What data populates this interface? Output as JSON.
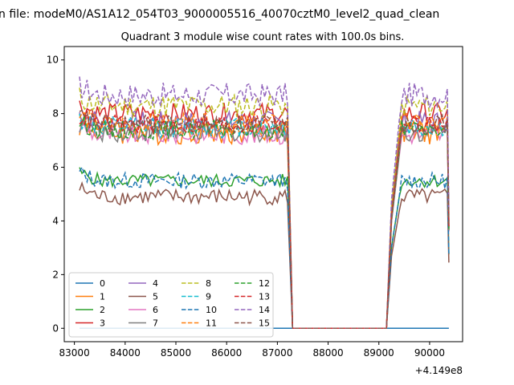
{
  "figure": {
    "suptitle": "n file: modeM0/AS1A12_054T03_9000005516_40070cztM0_level2_quad_clean",
    "title": "Quadrant 3 module wise count rates with 100.0s bins."
  },
  "chart_data": {
    "type": "line",
    "title": "Quadrant 3 module wise count rates with 100.0s bins.",
    "xlabel": "",
    "ylabel": "",
    "x_offset_label": "+4.149e8",
    "xlim": [
      82800,
      90650
    ],
    "ylim": [
      -0.5,
      10.5
    ],
    "xticks": [
      83000,
      84000,
      85000,
      86000,
      87000,
      88000,
      89000,
      90000
    ],
    "yticks": [
      0,
      2,
      4,
      6,
      8,
      10
    ],
    "grid": false,
    "legend": {
      "placement": "lower-left",
      "columns": 4
    },
    "gap": {
      "start": 87300,
      "end": 89150
    },
    "segment_1": {
      "start": 83100,
      "end": 87200
    },
    "segment_2": {
      "start": 89250,
      "end": 90350
    },
    "series": [
      {
        "name": "0",
        "color": "#1f77b4",
        "style": "solid",
        "level": 0.0,
        "amp": 0.0
      },
      {
        "name": "1",
        "color": "#ff7f0e",
        "style": "solid",
        "level": 7.3,
        "amp": 0.45
      },
      {
        "name": "2",
        "color": "#2ca02c",
        "style": "solid",
        "level": 5.5,
        "amp": 0.25
      },
      {
        "name": "3",
        "color": "#d62728",
        "style": "solid",
        "level": 8.0,
        "amp": 0.4
      },
      {
        "name": "4",
        "color": "#9467bd",
        "style": "solid",
        "level": 7.7,
        "amp": 0.4
      },
      {
        "name": "5",
        "color": "#8c564b",
        "style": "solid",
        "level": 4.9,
        "amp": 0.3
      },
      {
        "name": "6",
        "color": "#e377c2",
        "style": "solid",
        "level": 7.2,
        "amp": 0.35
      },
      {
        "name": "7",
        "color": "#7f7f7f",
        "style": "solid",
        "level": 7.3,
        "amp": 0.35
      },
      {
        "name": "8",
        "color": "#bcbd22",
        "style": "dashed",
        "level": 8.3,
        "amp": 0.45
      },
      {
        "name": "9",
        "color": "#17becf",
        "style": "dashed",
        "level": 7.5,
        "amp": 0.4
      },
      {
        "name": "10",
        "color": "#1f77b4",
        "style": "dashed",
        "level": 5.5,
        "amp": 0.3
      },
      {
        "name": "11",
        "color": "#ff7f0e",
        "style": "dashed",
        "level": 7.6,
        "amp": 0.4
      },
      {
        "name": "12",
        "color": "#2ca02c",
        "style": "dashed",
        "level": 7.4,
        "amp": 0.35
      },
      {
        "name": "13",
        "color": "#d62728",
        "style": "dashed",
        "level": 7.6,
        "amp": 0.35
      },
      {
        "name": "14",
        "color": "#9467bd",
        "style": "dashed",
        "level": 8.7,
        "amp": 0.45
      },
      {
        "name": "15",
        "color": "#8c564b",
        "style": "dashed",
        "level": 7.6,
        "amp": 0.35
      }
    ]
  }
}
